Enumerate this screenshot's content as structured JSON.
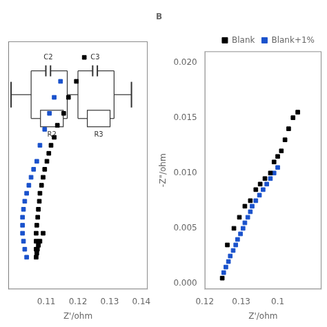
{
  "chart_data": [
    {
      "type": "scatter",
      "xlabel": "Z'/ohm",
      "annotations": [
        "C2",
        "C3",
        "R2",
        "R3"
      ],
      "series": [
        {
          "name": "Blank",
          "color": "#000000",
          "marker": "square",
          "x": [
            0.122,
            0.1195,
            0.117,
            0.1155,
            0.1135,
            0.1125,
            0.1115,
            0.1108,
            0.1102,
            0.1095,
            0.109,
            0.1085,
            0.108,
            0.1078,
            0.1075,
            0.1073,
            0.107,
            0.1068,
            0.1068,
            0.1068,
            0.1068,
            0.107,
            0.1072,
            0.1075,
            0.108,
            0.109
          ],
          "values": [
            0.016,
            0.013,
            0.011,
            0.009,
            0.0075,
            0.006,
            0.005,
            0.004,
            0.003,
            0.002,
            0.001,
            0.0,
            -0.001,
            -0.002,
            -0.003,
            -0.004,
            -0.005,
            -0.006,
            -0.007,
            -0.008,
            -0.009,
            -0.0085,
            -0.008,
            -0.0075,
            -0.007,
            -0.006
          ]
        },
        {
          "name": "Blank+1%",
          "color": "#1a52cc",
          "marker": "square",
          "x": [
            0.1145,
            0.1125,
            0.111,
            0.1095,
            0.108,
            0.107,
            0.106,
            0.1052,
            0.1045,
            0.1038,
            0.1032,
            0.1028,
            0.1025,
            0.1025,
            0.1025,
            0.1028,
            0.1032,
            0.1038
          ],
          "values": [
            0.013,
            0.011,
            0.009,
            0.007,
            0.005,
            0.003,
            0.002,
            0.001,
            0.0,
            -0.001,
            -0.002,
            -0.003,
            -0.004,
            -0.005,
            -0.006,
            -0.007,
            -0.008,
            -0.009
          ]
        }
      ],
      "xlim": [
        0.098,
        0.142
      ],
      "xticks": [
        0.11,
        0.12,
        0.13,
        0.14
      ],
      "ylim": [
        -0.013,
        0.018
      ],
      "tick_labels": "x",
      "grid": false
    },
    {
      "type": "scatter",
      "title": "B",
      "xlabel": "Z'/ohm",
      "ylabel": "-Z\"/ohm",
      "series": [
        {
          "name": "Blank",
          "color": "#000000",
          "marker": "square",
          "x": [
            0.1248,
            0.1262,
            0.128,
            0.1295,
            0.131,
            0.1325,
            0.134,
            0.1352,
            0.1365,
            0.138,
            0.139,
            0.14,
            0.141,
            0.142,
            0.143,
            0.1442,
            0.1455
          ],
          "values": [
            0.0005,
            0.0035,
            0.005,
            0.006,
            0.007,
            0.0075,
            0.0085,
            0.009,
            0.0095,
            0.01,
            0.011,
            0.0115,
            0.012,
            0.013,
            0.014,
            0.015,
            0.0155
          ]
        },
        {
          "name": "Blank+1%",
          "color": "#1a52cc",
          "marker": "square",
          "x": [
            0.1252,
            0.1258,
            0.1265,
            0.127,
            0.1278,
            0.1285,
            0.129,
            0.1298,
            0.1305,
            0.131,
            0.1318,
            0.1325,
            0.133,
            0.134,
            0.135,
            0.136,
            0.137,
            0.138,
            0.139,
            0.14
          ],
          "values": [
            0.001,
            0.0015,
            0.002,
            0.0025,
            0.003,
            0.0035,
            0.004,
            0.0045,
            0.005,
            0.0055,
            0.006,
            0.0065,
            0.007,
            0.0075,
            0.008,
            0.0085,
            0.009,
            0.0095,
            0.01,
            0.0105
          ]
        }
      ],
      "xlim": [
        0.12,
        0.152
      ],
      "xticks": [
        0.12,
        0.13,
        {
          "value": 0.14,
          "label": "0.1"
        }
      ],
      "ylim": [
        -0.0005,
        0.021
      ],
      "yticks": [
        {
          "value": 0.0,
          "label": "0.000"
        },
        {
          "value": 0.005,
          "label": "0.005"
        },
        {
          "value": 0.01,
          "label": "0.010"
        },
        {
          "value": 0.015,
          "label": "0.015"
        },
        {
          "value": 0.02,
          "label": "0.020"
        }
      ],
      "legend": "upper right",
      "grid": false
    }
  ]
}
